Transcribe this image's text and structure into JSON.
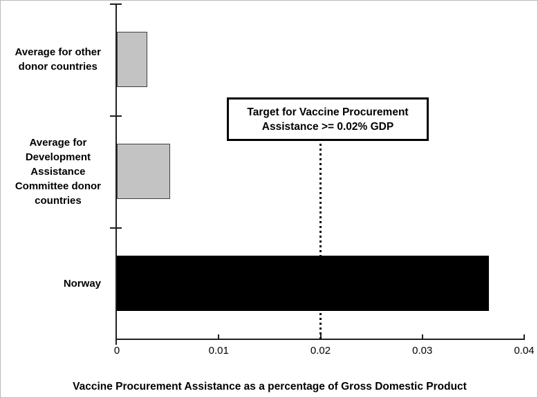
{
  "chart_data": {
    "type": "bar",
    "orientation": "horizontal",
    "title": "",
    "xlabel": "Vaccine Procurement Assistance as a percentage of Gross Domestic Product",
    "ylabel": "",
    "categories": [
      "Average for other donor countries",
      "Average for Development Assistance Committee donor countries",
      "Norway"
    ],
    "category_label_lines": [
      [
        "Average for other",
        "donor countries"
      ],
      [
        "Average for",
        "Development",
        "Assistance",
        "Committee donor",
        "countries"
      ],
      [
        "Norway"
      ]
    ],
    "values": [
      0.003,
      0.0052,
      0.0365
    ],
    "bar_fill_colors": [
      "#c3c3c3",
      "#c3c3c3",
      "#000000"
    ],
    "bar_border_colors": [
      "#3f3f3f",
      "#3f3f3f",
      "#000000"
    ],
    "xlim": [
      0,
      0.04
    ],
    "x_tick_values": [
      0,
      0.01,
      0.02,
      0.03,
      0.04
    ],
    "x_tick_labels": [
      "0",
      "0.01",
      "0.02",
      "0.03",
      "0.04"
    ],
    "grid": false,
    "legend": false,
    "target_line": {
      "value": 0.02,
      "style": "dotted",
      "color": "#000000",
      "label_line1": "Target for Vaccine Procurement",
      "label_line2": "Assistance >= 0.02% GDP"
    }
  },
  "annotation": {
    "line1": "Target for Vaccine Procurement",
    "line2": "Assistance >= 0.02% GDP"
  },
  "colors": {
    "gray_bar": "#c3c3c3",
    "black_bar": "#000000",
    "axis": "#1f1f1f",
    "background": "#ffffff"
  }
}
